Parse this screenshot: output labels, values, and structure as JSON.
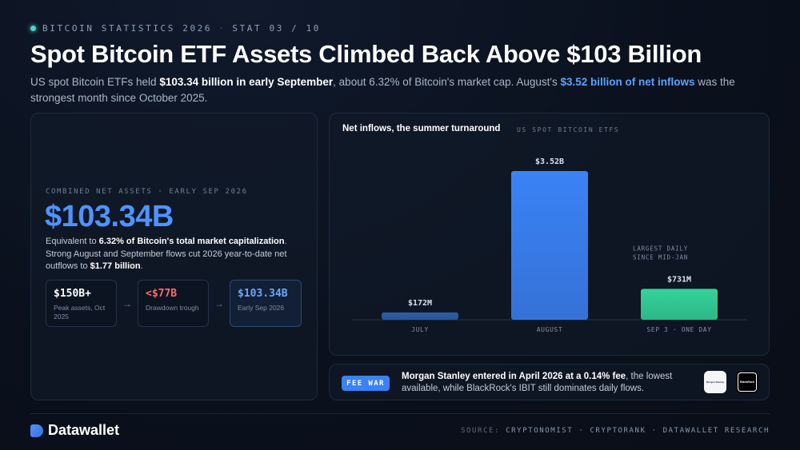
{
  "eyebrow": {
    "section": "BITCOIN STATISTICS 2026",
    "separator": "·",
    "stat": "STAT 03 / 10"
  },
  "title": "Spot Bitcoin ETF Assets Climbed Back Above $103 Billion",
  "subtitle": {
    "part1": "US spot Bitcoin ETFs held ",
    "bold1": "$103.34 billion in early September",
    "part2": ", about 6.32% of Bitcoin's market cap. August's ",
    "highlight": "$3.52 billion of net inflows",
    "part3": " was the strongest month since October 2025."
  },
  "kpi": {
    "label": "COMBINED NET ASSETS · EARLY SEP 2026",
    "value": "$103.34B",
    "desc_part1": "Equivalent to ",
    "desc_bold1": "6.32% of Bitcoin's total market capitalization",
    "desc_part2": ". Strong August and September flows cut 2026 year-to-date net outflows to ",
    "desc_bold2": "$1.77 billion",
    "desc_part3": "."
  },
  "steps": [
    {
      "value": "$150B+",
      "label": "Peak assets, Oct 2025"
    },
    {
      "value": "<$77B",
      "label": "Drawdown trough"
    },
    {
      "value": "$103.34B",
      "label": "Early Sep 2026"
    }
  ],
  "arrow_glyph": "→",
  "chart_data": {
    "type": "bar",
    "title": "Net inflows, the summer turnaround",
    "subtitle": "US SPOT BITCOIN ETFS",
    "categories": [
      "JULY",
      "AUGUST",
      "SEP 3 · ONE DAY"
    ],
    "values": [
      0.172,
      3.52,
      0.731
    ],
    "value_labels": [
      "$172M",
      "$3.52B",
      "$731M"
    ],
    "unit": "USD billions",
    "ylim": [
      0,
      3.52
    ],
    "annotation": {
      "category": "SEP 3 · ONE DAY",
      "lines": [
        "LARGEST DAILY",
        "SINCE MID-JAN"
      ]
    },
    "colors": {
      "JULY": "#2f5fa8",
      "AUGUST": "#3b82f6",
      "SEP 3 · ONE DAY": "#34d399"
    },
    "grid": false
  },
  "fee": {
    "badge": "FEE WAR",
    "bold": "Morgan Stanley entered in April 2026 at a 0.14% fee",
    "rest": ", the lowest available, while BlackRock's IBIT still dominates daily flows.",
    "logo_ms": "Morgan Stanley",
    "logo_br": "BlackRock"
  },
  "footer": {
    "brand": "Datawallet",
    "source_key": "SOURCE:",
    "sources": "CRYPTONOMIST · CRYPTORANK · DATAWALLET RESEARCH"
  },
  "colors": {
    "background": "#0a101c",
    "accent_blue": "#4f93ff",
    "accent_red": "#ff6b6b",
    "accent_green": "#34d399"
  }
}
